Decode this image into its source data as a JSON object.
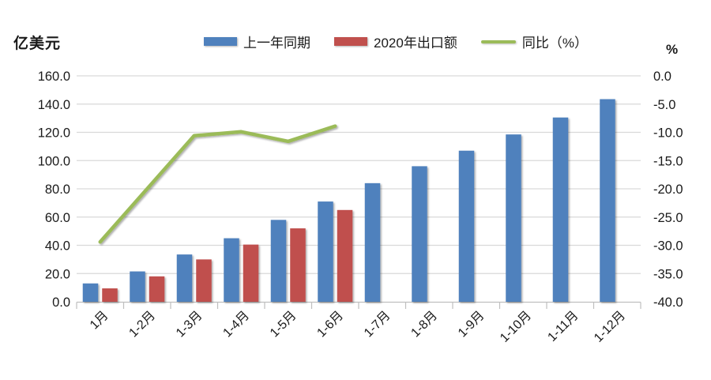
{
  "chart_data": {
    "type": "bar+line",
    "categories": [
      "1月",
      "1-2月",
      "1-3月",
      "1-4月",
      "1-5月",
      "1-6月",
      "1-7月",
      "1-8月",
      "1-9月",
      "1-10月",
      "1-11月",
      "1-12月"
    ],
    "series": [
      {
        "name": "上一年同期",
        "type": "bar",
        "axis": "left",
        "color": "#4F81BD",
        "values": [
          13.0,
          21.5,
          33.5,
          45.0,
          58.0,
          71.0,
          84.0,
          96.0,
          107.0,
          118.5,
          130.5,
          143.5
        ]
      },
      {
        "name": "2020年出口额",
        "type": "bar",
        "axis": "left",
        "color": "#C0504D",
        "values": [
          9.5,
          18.0,
          30.0,
          40.5,
          52.0,
          65.0,
          null,
          null,
          null,
          null,
          null,
          null
        ]
      },
      {
        "name": "同比（%）",
        "type": "line",
        "axis": "right",
        "color": "#9BBB59",
        "values": [
          -29.4,
          -20.0,
          -10.6,
          -9.9,
          -11.6,
          -8.9,
          null,
          null,
          null,
          null,
          null,
          null
        ]
      }
    ],
    "left_axis": {
      "title": "亿美元",
      "min": 0,
      "max": 160,
      "step": 20,
      "tick_labels": [
        "160.0",
        "140.0",
        "120.0",
        "100.0",
        "80.0",
        "60.0",
        "40.0",
        "20.0",
        "0.0"
      ]
    },
    "right_axis": {
      "title": "%",
      "min": -40,
      "max": 0,
      "step": 5,
      "tick_labels": [
        "0.0",
        "-5.0",
        "-10.0",
        "-15.0",
        "-20.0",
        "-25.0",
        "-30.0",
        "-35.0",
        "-40.0"
      ]
    },
    "grid": true,
    "legend_position": "top",
    "colors": {
      "gridline": "#D9D9D9",
      "axis_line": "#BFBFBF",
      "text": "#1a1a1a"
    }
  }
}
